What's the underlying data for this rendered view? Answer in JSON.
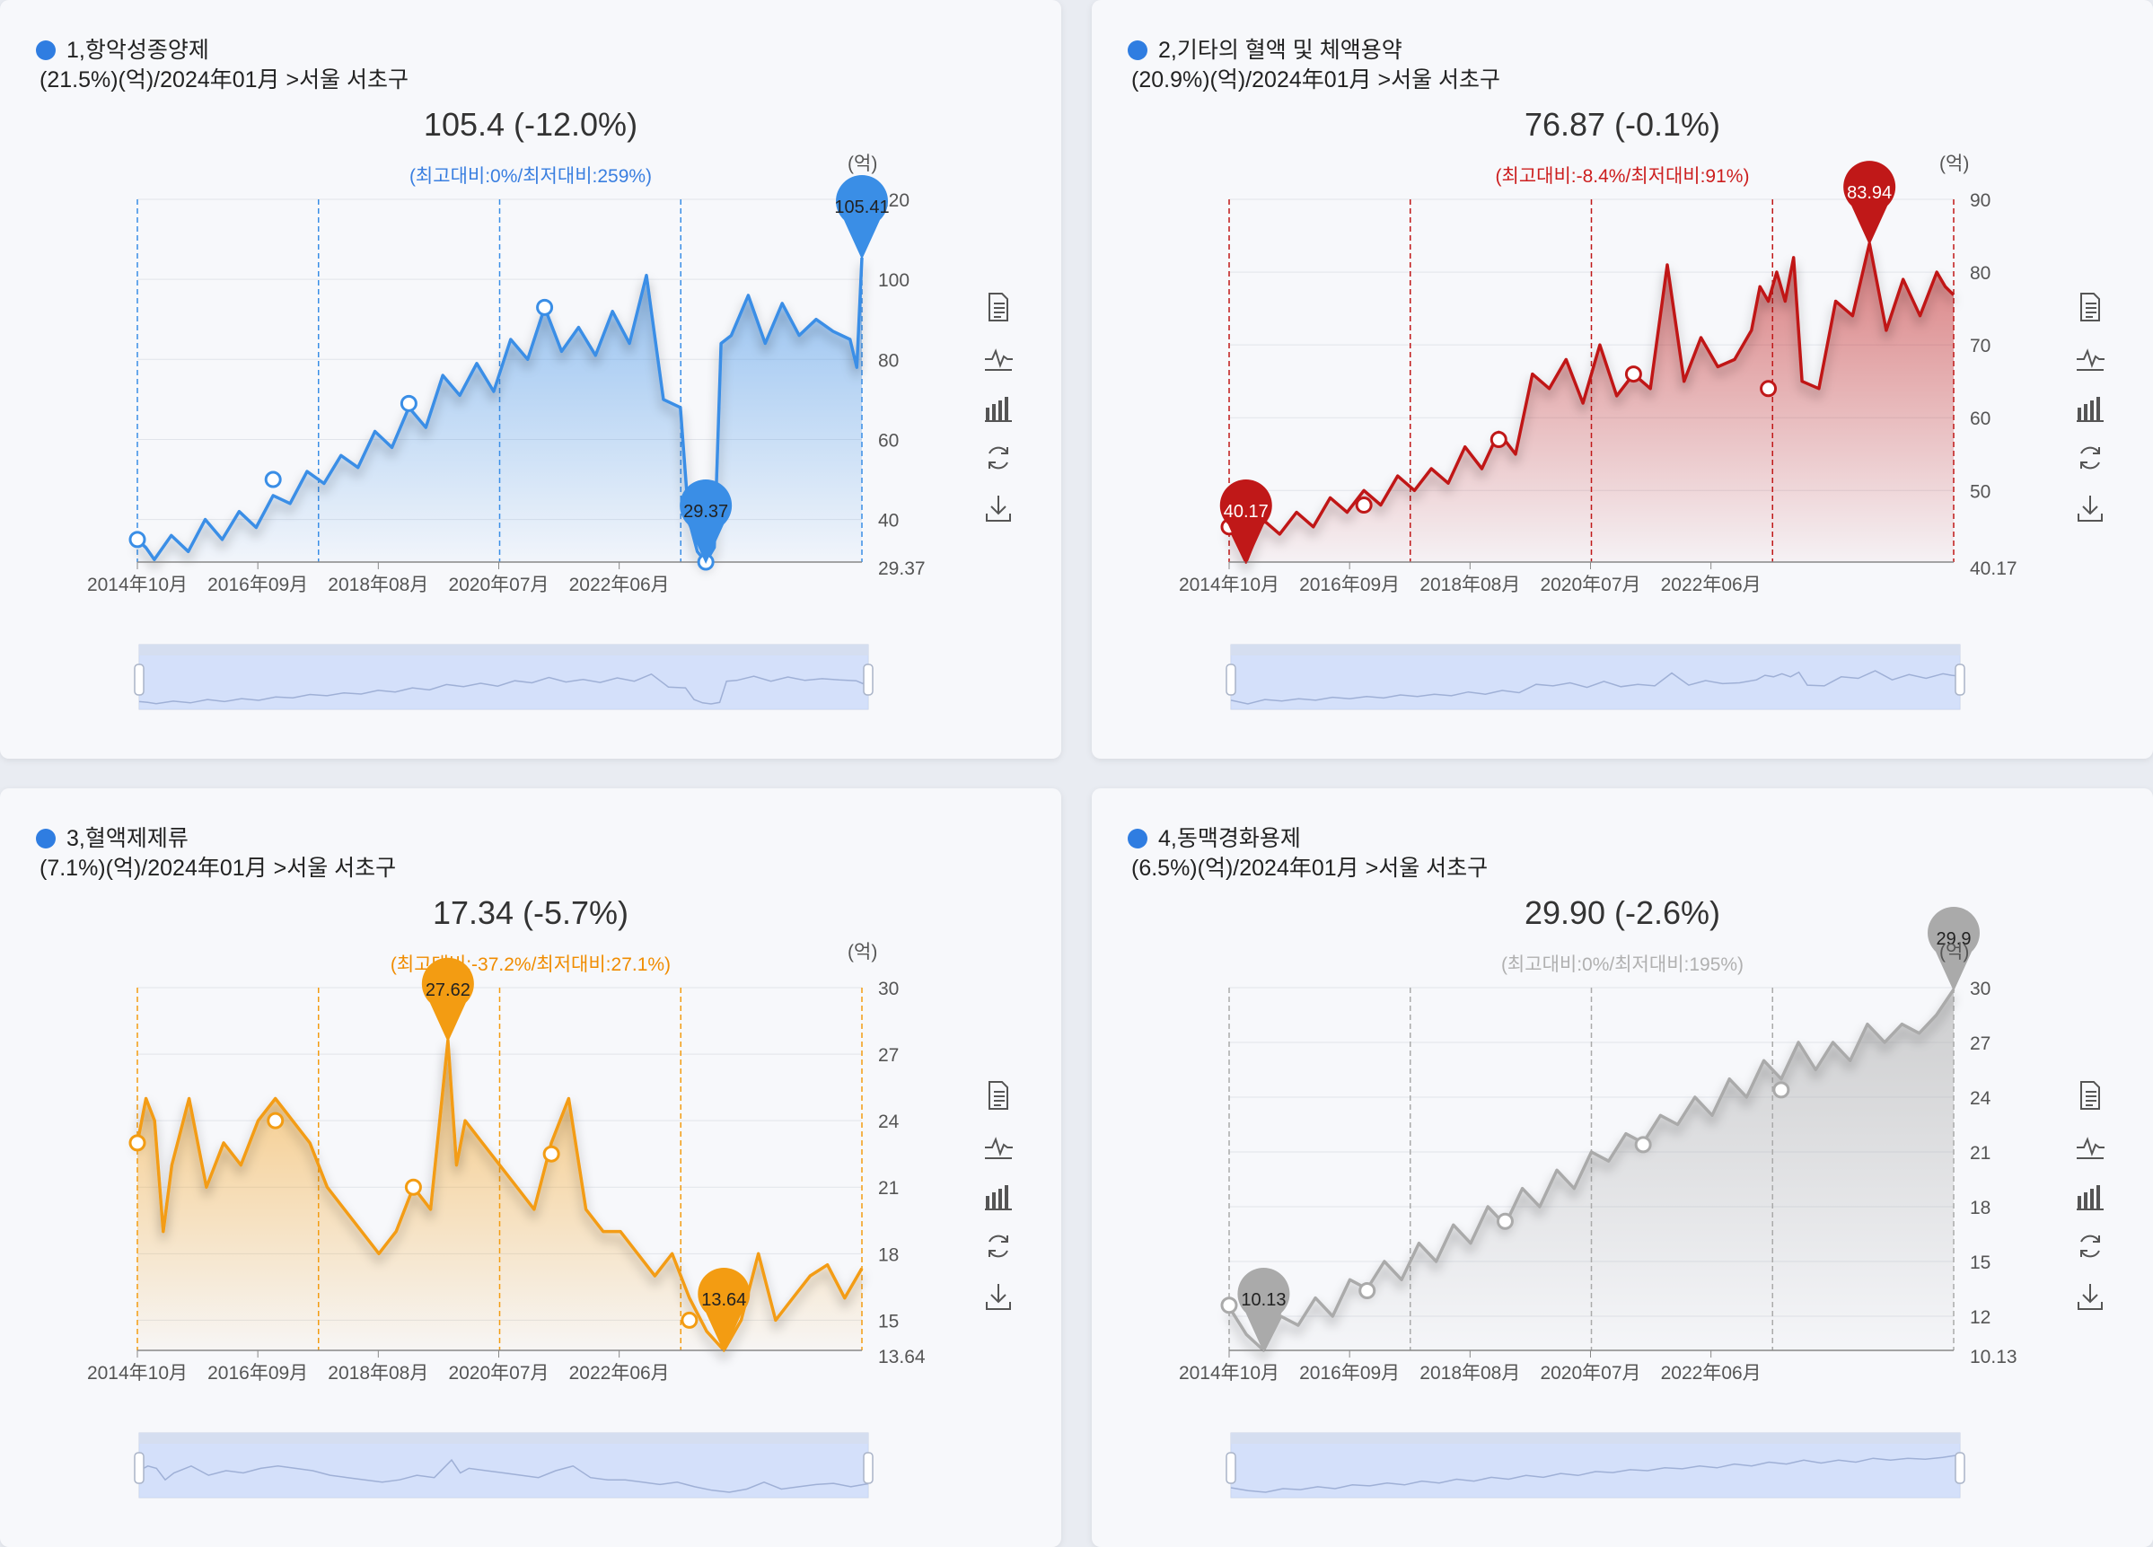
{
  "unit_label": "(억)",
  "toolbar": [
    "data-view-icon",
    "line-chart-icon",
    "bar-chart-icon",
    "restore-icon",
    "download-icon"
  ],
  "panels": [
    {
      "header_line1": "1,항악성종양제",
      "header_line2": "(21.5%)(억)/2024年01月 >서울 서초구",
      "big_value": "105.4 (-12.0%)",
      "sub_text": "(최고대비:0%/최저대비:259%)",
      "color": "#3a8ee6",
      "sub_color": "#3a7fe0",
      "chart_data": {
        "type": "line",
        "x_labels": [
          "2014年10月",
          "2016年09月",
          "2018年08月",
          "2020年07月",
          "2022年06月"
        ],
        "y_ticks": [
          "40",
          "60",
          "80",
          "100",
          "120"
        ],
        "ymin_label": "29.37",
        "ylim": [
          29.37,
          120
        ],
        "max_label": "105.41",
        "min_label": "29.37",
        "points": [
          [
            0,
            35
          ],
          [
            0.5,
            33
          ],
          [
            1,
            30
          ],
          [
            2,
            36
          ],
          [
            3,
            32
          ],
          [
            4,
            40
          ],
          [
            5,
            35
          ],
          [
            6,
            42
          ],
          [
            7,
            38
          ],
          [
            8,
            46
          ],
          [
            9,
            44
          ],
          [
            10,
            52
          ],
          [
            11,
            49
          ],
          [
            12,
            56
          ],
          [
            13,
            53
          ],
          [
            14,
            62
          ],
          [
            15,
            58
          ],
          [
            16,
            68
          ],
          [
            17,
            63
          ],
          [
            18,
            76
          ],
          [
            19,
            71
          ],
          [
            20,
            79
          ],
          [
            21,
            72
          ],
          [
            22,
            85
          ],
          [
            23,
            80
          ],
          [
            24,
            93
          ],
          [
            25,
            82
          ],
          [
            26,
            88
          ],
          [
            27,
            81
          ],
          [
            28,
            92
          ],
          [
            29,
            84
          ],
          [
            30,
            101
          ],
          [
            31,
            70
          ],
          [
            32,
            68
          ],
          [
            32.5,
            40
          ],
          [
            33,
            32
          ],
          [
            33.5,
            29.37
          ],
          [
            34,
            33
          ],
          [
            34.4,
            84
          ],
          [
            35,
            86
          ],
          [
            36,
            96
          ],
          [
            37,
            84
          ],
          [
            38,
            94
          ],
          [
            39,
            86
          ],
          [
            40,
            90
          ],
          [
            41,
            87
          ],
          [
            42,
            85
          ],
          [
            42.4,
            78
          ],
          [
            42.7,
            105.41
          ]
        ],
        "markers": [
          [
            0,
            35
          ],
          [
            8,
            50
          ],
          [
            16,
            69
          ],
          [
            24,
            93
          ],
          [
            33.5,
            29.37
          ]
        ]
      }
    },
    {
      "header_line1": "2,기타의 혈액 및 체액용약",
      "header_line2": "(20.9%)(억)/2024年01月 >서울 서초구",
      "big_value": "76.87 (-0.1%)",
      "sub_text": "(최고대비:-8.4%/최저대비:91%)",
      "color": "#c01818",
      "sub_color": "#cc1e1e",
      "chart_data": {
        "type": "line",
        "x_labels": [
          "2014年10月",
          "2016年09月",
          "2018年08月",
          "2020年07月",
          "2022年06月"
        ],
        "y_ticks": [
          "50",
          "60",
          "70",
          "80",
          "90"
        ],
        "ymin_label": "40.17",
        "ylim": [
          40.17,
          90
        ],
        "max_label": "83.94",
        "min_label": "40.17",
        "points": [
          [
            0,
            45
          ],
          [
            1,
            40.17
          ],
          [
            2,
            46
          ],
          [
            3,
            44
          ],
          [
            4,
            47
          ],
          [
            5,
            45
          ],
          [
            6,
            49
          ],
          [
            7,
            47
          ],
          [
            8,
            50
          ],
          [
            9,
            48
          ],
          [
            10,
            52
          ],
          [
            11,
            50
          ],
          [
            12,
            53
          ],
          [
            13,
            51
          ],
          [
            14,
            56
          ],
          [
            15,
            53
          ],
          [
            16,
            58
          ],
          [
            17,
            55
          ],
          [
            18,
            66
          ],
          [
            19,
            64
          ],
          [
            20,
            68
          ],
          [
            21,
            62
          ],
          [
            22,
            70
          ],
          [
            23,
            63
          ],
          [
            24,
            66
          ],
          [
            25,
            64
          ],
          [
            26,
            81
          ],
          [
            27,
            65
          ],
          [
            28,
            71
          ],
          [
            29,
            67
          ],
          [
            30,
            68
          ],
          [
            31,
            72
          ],
          [
            31.5,
            78
          ],
          [
            32,
            76
          ],
          [
            32.5,
            80
          ],
          [
            33,
            76
          ],
          [
            33.5,
            82
          ],
          [
            34,
            65
          ],
          [
            35,
            64
          ],
          [
            36,
            76
          ],
          [
            37,
            74
          ],
          [
            38,
            83.94
          ],
          [
            39,
            72
          ],
          [
            40,
            79
          ],
          [
            41,
            74
          ],
          [
            42,
            80
          ],
          [
            42.5,
            78
          ],
          [
            43,
            76.87
          ]
        ],
        "markers": [
          [
            0,
            45
          ],
          [
            8,
            48
          ],
          [
            16,
            57
          ],
          [
            24,
            66
          ],
          [
            32,
            64
          ]
        ]
      }
    },
    {
      "header_line1": "3,혈액제제류",
      "header_line2": "(7.1%)(억)/2024年01月 >서울 서초구",
      "big_value": "17.34 (-5.7%)",
      "sub_text": "(최고대비:-37.2%/최저대비:27.1%)",
      "color": "#f39c12",
      "sub_color": "#f08c00",
      "chart_data": {
        "type": "line",
        "x_labels": [
          "2014年10月",
          "2016年09月",
          "2018年08月",
          "2020年07月",
          "2022年06月"
        ],
        "y_ticks": [
          "15",
          "18",
          "21",
          "24",
          "27",
          "30"
        ],
        "ymin_label": "13.64",
        "ylim": [
          13.64,
          30
        ],
        "max_label": "27.62",
        "min_label": "13.64",
        "points": [
          [
            0,
            23
          ],
          [
            0.5,
            25
          ],
          [
            1,
            24
          ],
          [
            1.5,
            19
          ],
          [
            2,
            22
          ],
          [
            3,
            25
          ],
          [
            4,
            21
          ],
          [
            5,
            23
          ],
          [
            6,
            22
          ],
          [
            7,
            24
          ],
          [
            8,
            25
          ],
          [
            9,
            24
          ],
          [
            10,
            23
          ],
          [
            11,
            21
          ],
          [
            12,
            20
          ],
          [
            13,
            19
          ],
          [
            14,
            18
          ],
          [
            15,
            19
          ],
          [
            16,
            21
          ],
          [
            17,
            20
          ],
          [
            18,
            27.62
          ],
          [
            18.5,
            22
          ],
          [
            19,
            24
          ],
          [
            20,
            23
          ],
          [
            21,
            22
          ],
          [
            22,
            21
          ],
          [
            23,
            20
          ],
          [
            24,
            23
          ],
          [
            25,
            25
          ],
          [
            26,
            20
          ],
          [
            27,
            19
          ],
          [
            28,
            19
          ],
          [
            29,
            18
          ],
          [
            30,
            17
          ],
          [
            31,
            18
          ],
          [
            32,
            16
          ],
          [
            33,
            14.5
          ],
          [
            34,
            13.64
          ],
          [
            35,
            15
          ],
          [
            36,
            18
          ],
          [
            37,
            15
          ],
          [
            38,
            16
          ],
          [
            39,
            17
          ],
          [
            40,
            17.5
          ],
          [
            41,
            16
          ],
          [
            42,
            17.34
          ]
        ],
        "markers": [
          [
            0,
            23
          ],
          [
            8,
            24
          ],
          [
            16,
            21
          ],
          [
            24,
            22.5
          ],
          [
            32,
            15
          ]
        ]
      }
    },
    {
      "header_line1": "4,동맥경화용제",
      "header_line2": "(6.5%)(억)/2024年01月 >서울 서초구",
      "big_value": "29.90 (-2.6%)",
      "sub_text": "(최고대비:0%/최저대비:195%)",
      "color": "#aaaaaa",
      "sub_color": "#b0b0b0",
      "chart_data": {
        "type": "line",
        "x_labels": [
          "2014年10月",
          "2016年09月",
          "2018年08月",
          "2020年07月",
          "2022年06月"
        ],
        "y_ticks": [
          "12",
          "15",
          "18",
          "21",
          "24",
          "27",
          "30"
        ],
        "ymin_label": "10.13",
        "ylim": [
          10.13,
          30
        ],
        "max_label": "29.9",
        "min_label": "10.13",
        "points": [
          [
            0,
            12.5
          ],
          [
            1,
            11
          ],
          [
            2,
            10.13
          ],
          [
            3,
            12
          ],
          [
            4,
            11.5
          ],
          [
            5,
            13
          ],
          [
            6,
            12
          ],
          [
            7,
            14
          ],
          [
            8,
            13.5
          ],
          [
            9,
            15
          ],
          [
            10,
            14
          ],
          [
            11,
            16
          ],
          [
            12,
            15
          ],
          [
            13,
            17
          ],
          [
            14,
            16
          ],
          [
            15,
            18
          ],
          [
            16,
            17
          ],
          [
            17,
            19
          ],
          [
            18,
            18
          ],
          [
            19,
            20
          ],
          [
            20,
            19
          ],
          [
            21,
            21
          ],
          [
            22,
            20.5
          ],
          [
            23,
            22
          ],
          [
            24,
            21.5
          ],
          [
            25,
            23
          ],
          [
            26,
            22.5
          ],
          [
            27,
            24
          ],
          [
            28,
            23
          ],
          [
            29,
            25
          ],
          [
            30,
            24
          ],
          [
            31,
            26
          ],
          [
            32,
            25
          ],
          [
            33,
            27
          ],
          [
            34,
            25.5
          ],
          [
            35,
            27
          ],
          [
            36,
            26
          ],
          [
            37,
            28
          ],
          [
            38,
            27
          ],
          [
            39,
            28
          ],
          [
            40,
            27.5
          ],
          [
            41,
            28.5
          ],
          [
            42,
            29.9
          ]
        ],
        "markers": [
          [
            0,
            12.6
          ],
          [
            8,
            13.4
          ],
          [
            16,
            17.2
          ],
          [
            24,
            21.4
          ],
          [
            32,
            24.4
          ]
        ]
      }
    }
  ]
}
